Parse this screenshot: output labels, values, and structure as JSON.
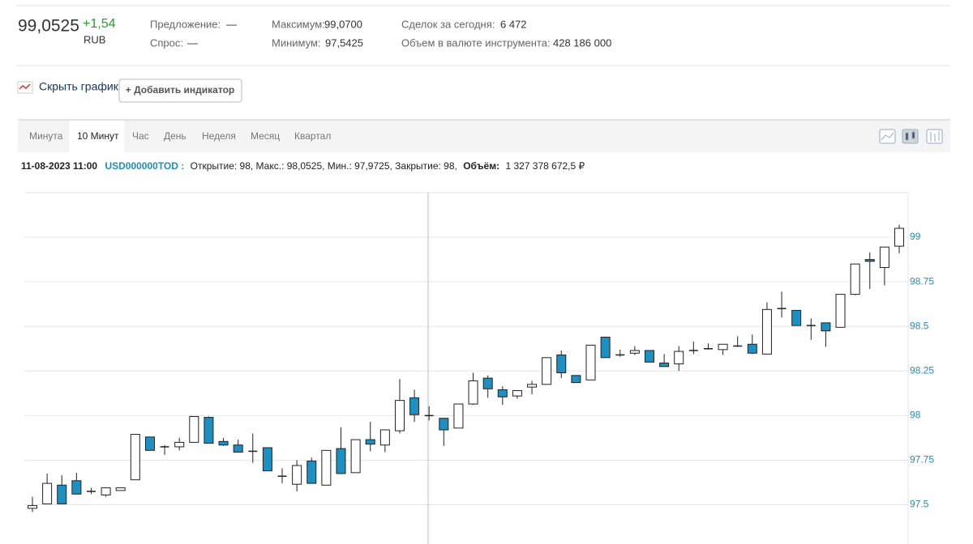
{
  "quote": {
    "price": "99,0525",
    "change": "+1,54",
    "currency": "RUB"
  },
  "stats": {
    "bid_label": "Предложение:",
    "bid": "—",
    "ask_label": "Спрос:",
    "ask": "—",
    "high_label": "Максимум:",
    "high": "99,0700",
    "low_label": "Минимум:",
    "low": "97,5425",
    "deals_label": "Сделок за сегодня:",
    "deals": "6 472",
    "volume_label": "Объем в валюте инструмента:",
    "volume": "428 186 000"
  },
  "controls": {
    "hide_chart": "Скрыть график",
    "add_indicator": "+ Добавить индикатор"
  },
  "tabs": [
    "Минута",
    "10 Минут",
    "Час",
    "День",
    "Неделя",
    "Месяц",
    "Квартал"
  ],
  "info": {
    "datetime": "11-08-2023 11:00",
    "ticker": "USD000000TOD :",
    "ohlc": "Открытие: 98, Макс.: 98,0525, Мин.: 97,9725, Закрытие: 98,",
    "volume_label": "Объём:",
    "volume": "1 327 378 672,5 ₽"
  },
  "chart_data": {
    "type": "candlestick",
    "ylim": [
      97.28,
      99.25
    ],
    "yticks": [
      99,
      98.75,
      98.5,
      98.25,
      98,
      97.75,
      97.5
    ],
    "grid": true,
    "up_color": "#ffffff",
    "down_color": "#1d8fc0",
    "edge_color": "#222222",
    "tick_color": "#1d8fc0",
    "open": [
      97.48,
      97.505,
      97.61,
      97.635,
      97.575,
      97.555,
      97.58,
      97.64,
      97.88,
      97.825,
      97.825,
      97.85,
      97.99,
      97.855,
      97.835,
      97.8,
      97.82,
      97.66,
      97.615,
      97.745,
      97.61,
      97.815,
      97.68,
      97.865,
      97.835,
      97.915,
      98.1,
      98,
      97.985,
      97.93,
      98.065,
      98.21,
      98.145,
      98.11,
      98.16,
      98.175,
      98.34,
      98.225,
      98.2,
      98.44,
      98.34,
      98.35,
      98.365,
      98.295,
      98.29,
      98.365,
      98.375,
      98.37,
      98.39,
      98.4,
      98.345,
      98.6,
      98.59,
      98.505,
      98.52,
      98.495,
      98.68,
      98.875,
      98.83,
      98.95
    ],
    "high": [
      97.545,
      97.675,
      97.665,
      97.68,
      97.595,
      97.595,
      97.595,
      97.895,
      97.88,
      97.835,
      97.875,
      97.995,
      97.995,
      97.875,
      97.865,
      97.9,
      97.82,
      97.705,
      97.75,
      97.765,
      97.805,
      97.935,
      97.865,
      97.965,
      97.92,
      98.205,
      98.145,
      98.0525,
      97.985,
      98.065,
      98.24,
      98.225,
      98.165,
      98.14,
      98.195,
      98.325,
      98.365,
      98.225,
      98.395,
      98.44,
      98.37,
      98.39,
      98.365,
      98.345,
      98.39,
      98.415,
      98.405,
      98.4,
      98.445,
      98.455,
      98.635,
      98.695,
      98.59,
      98.545,
      98.52,
      98.68,
      98.85,
      98.915,
      98.945,
      99.07
    ],
    "low": [
      97.46,
      97.505,
      97.505,
      97.56,
      97.56,
      97.545,
      97.58,
      97.64,
      97.805,
      97.78,
      97.805,
      97.85,
      97.845,
      97.83,
      97.795,
      97.735,
      97.69,
      97.62,
      97.575,
      97.62,
      97.61,
      97.675,
      97.68,
      97.8,
      97.795,
      97.9,
      97.965,
      97.9725,
      97.83,
      97.93,
      98.06,
      98.1,
      98.06,
      98.095,
      98.12,
      98.175,
      98.21,
      98.185,
      98.2,
      98.325,
      98.33,
      98.34,
      98.3,
      98.275,
      98.25,
      98.345,
      98.37,
      98.34,
      98.385,
      98.345,
      98.345,
      98.55,
      98.505,
      98.425,
      98.385,
      98.495,
      98.675,
      98.71,
      98.73,
      98.91
    ],
    "close": [
      97.495,
      97.62,
      97.505,
      97.56,
      97.575,
      97.595,
      97.595,
      97.895,
      97.805,
      97.825,
      97.85,
      97.995,
      97.845,
      97.835,
      97.795,
      97.8,
      97.69,
      97.66,
      97.72,
      97.62,
      97.805,
      97.675,
      97.865,
      97.84,
      97.92,
      98.085,
      98.005,
      98,
      97.92,
      98.065,
      98.195,
      98.15,
      98.105,
      98.14,
      98.175,
      98.325,
      98.24,
      98.185,
      98.395,
      98.325,
      98.34,
      98.365,
      98.3,
      98.275,
      98.36,
      98.365,
      98.375,
      98.4,
      98.39,
      98.35,
      98.595,
      98.6,
      98.505,
      98.505,
      98.475,
      98.68,
      98.85,
      98.865,
      98.945,
      99.05
    ]
  }
}
